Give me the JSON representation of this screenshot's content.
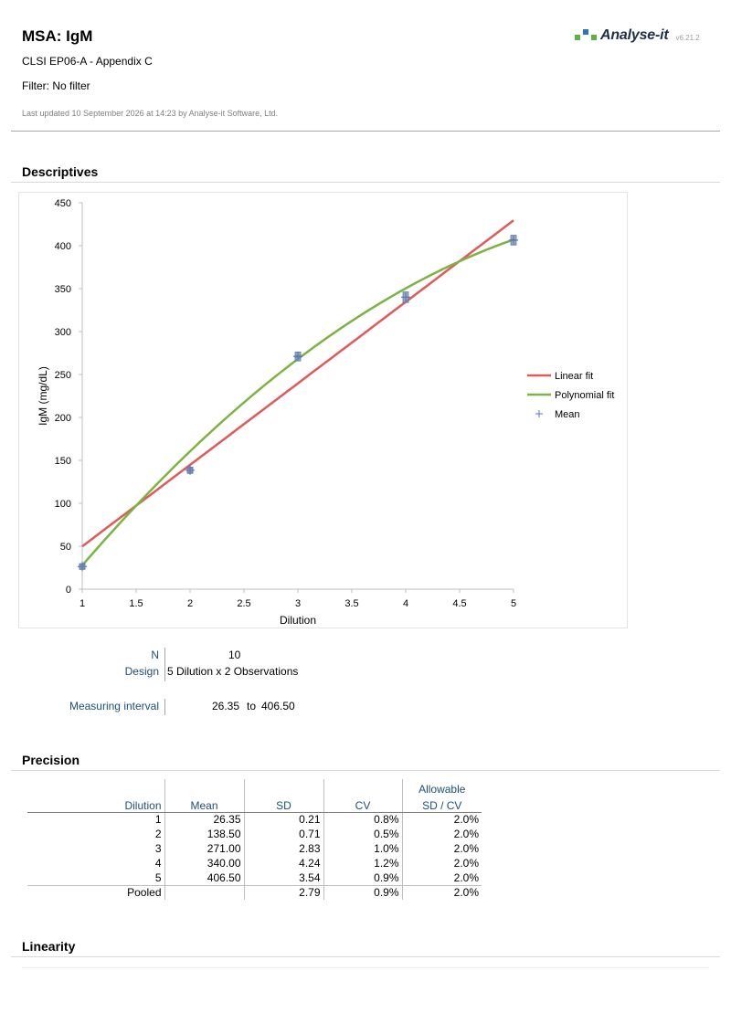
{
  "header": {
    "title": "MSA: IgM",
    "subtitle": "CLSI EP06-A - Appendix C",
    "filter": "Filter: No filter",
    "updated": "Last updated 10 September 2026 at 14:23 by Analyse-it Software, Ltd.",
    "logo_text": "Analyse-it",
    "version": "v6.21.2",
    "brand_colors": {
      "green": "#5cb247",
      "blue": "#2e75b6",
      "text": "#1f2f45"
    }
  },
  "sections": {
    "descriptives": "Descriptives",
    "precision": "Precision",
    "linearity": "Linearity"
  },
  "chart_data": {
    "type": "scatter",
    "xlabel": "Dilution",
    "ylabel": "IgM (mg/dL)",
    "xlim": [
      1,
      5
    ],
    "ylim": [
      0,
      450
    ],
    "x_ticks": [
      "1",
      "1.5",
      "2",
      "2.5",
      "3",
      "3.5",
      "4",
      "4.5",
      "5"
    ],
    "y_ticks": [
      "0",
      "50",
      "100",
      "150",
      "200",
      "250",
      "300",
      "350",
      "400",
      "450"
    ],
    "legend_position": "right",
    "legend": [
      {
        "label": "Linear fit",
        "kind": "line",
        "color": "#e05a5a"
      },
      {
        "label": "Polynomial fit",
        "kind": "line",
        "color": "#7cb342"
      },
      {
        "label": "Mean",
        "kind": "marker",
        "color": "#5b7ab8"
      }
    ],
    "linear_fit": {
      "color": "#e05a5a",
      "intercept": -45.05,
      "slope": 94.9
    },
    "polynomial_fit": {
      "color": "#7cb342",
      "a": -130.6,
      "b": 170.9,
      "c": -12.67
    },
    "observations": [
      {
        "x": 1,
        "y": 26.5
      },
      {
        "x": 1,
        "y": 26.2
      },
      {
        "x": 2,
        "y": 139.0
      },
      {
        "x": 2,
        "y": 138.0
      },
      {
        "x": 3,
        "y": 273.0
      },
      {
        "x": 3,
        "y": 269.0
      },
      {
        "x": 4,
        "y": 343.0
      },
      {
        "x": 4,
        "y": 337.0
      },
      {
        "x": 5,
        "y": 409.0
      },
      {
        "x": 5,
        "y": 404.0
      }
    ],
    "means": [
      {
        "x": 1,
        "y": 26.35
      },
      {
        "x": 2,
        "y": 138.5
      },
      {
        "x": 3,
        "y": 271.0
      },
      {
        "x": 4,
        "y": 340.0
      },
      {
        "x": 5,
        "y": 406.5
      }
    ],
    "marker_color": "#5b7ab8"
  },
  "descriptives": {
    "n_label": "N",
    "n_value": "10",
    "design_label": "Design",
    "design_value": "5 Dilution x 2 Observations",
    "interval_label": "Measuring interval",
    "interval_low": "26.35",
    "interval_to": "to",
    "interval_high": "406.50"
  },
  "precision": {
    "headers": {
      "dilution": "Dilution",
      "mean": "Mean",
      "sd": "SD",
      "cv": "CV",
      "allowable": "Allowable",
      "allowable_sub": "SD / CV"
    },
    "rows": [
      {
        "dilution": "1",
        "mean": "26.35",
        "sd": "0.21",
        "cv": "0.8%",
        "allow": "2.0%"
      },
      {
        "dilution": "2",
        "mean": "138.50",
        "sd": "0.71",
        "cv": "0.5%",
        "allow": "2.0%"
      },
      {
        "dilution": "3",
        "mean": "271.00",
        "sd": "2.83",
        "cv": "1.0%",
        "allow": "2.0%"
      },
      {
        "dilution": "4",
        "mean": "340.00",
        "sd": "4.24",
        "cv": "1.2%",
        "allow": "2.0%"
      },
      {
        "dilution": "5",
        "mean": "406.50",
        "sd": "3.54",
        "cv": "0.9%",
        "allow": "2.0%"
      }
    ],
    "pooled": {
      "dilution": "Pooled",
      "mean": "",
      "sd": "2.79",
      "cv": "0.9%",
      "allow": "2.0%"
    }
  }
}
